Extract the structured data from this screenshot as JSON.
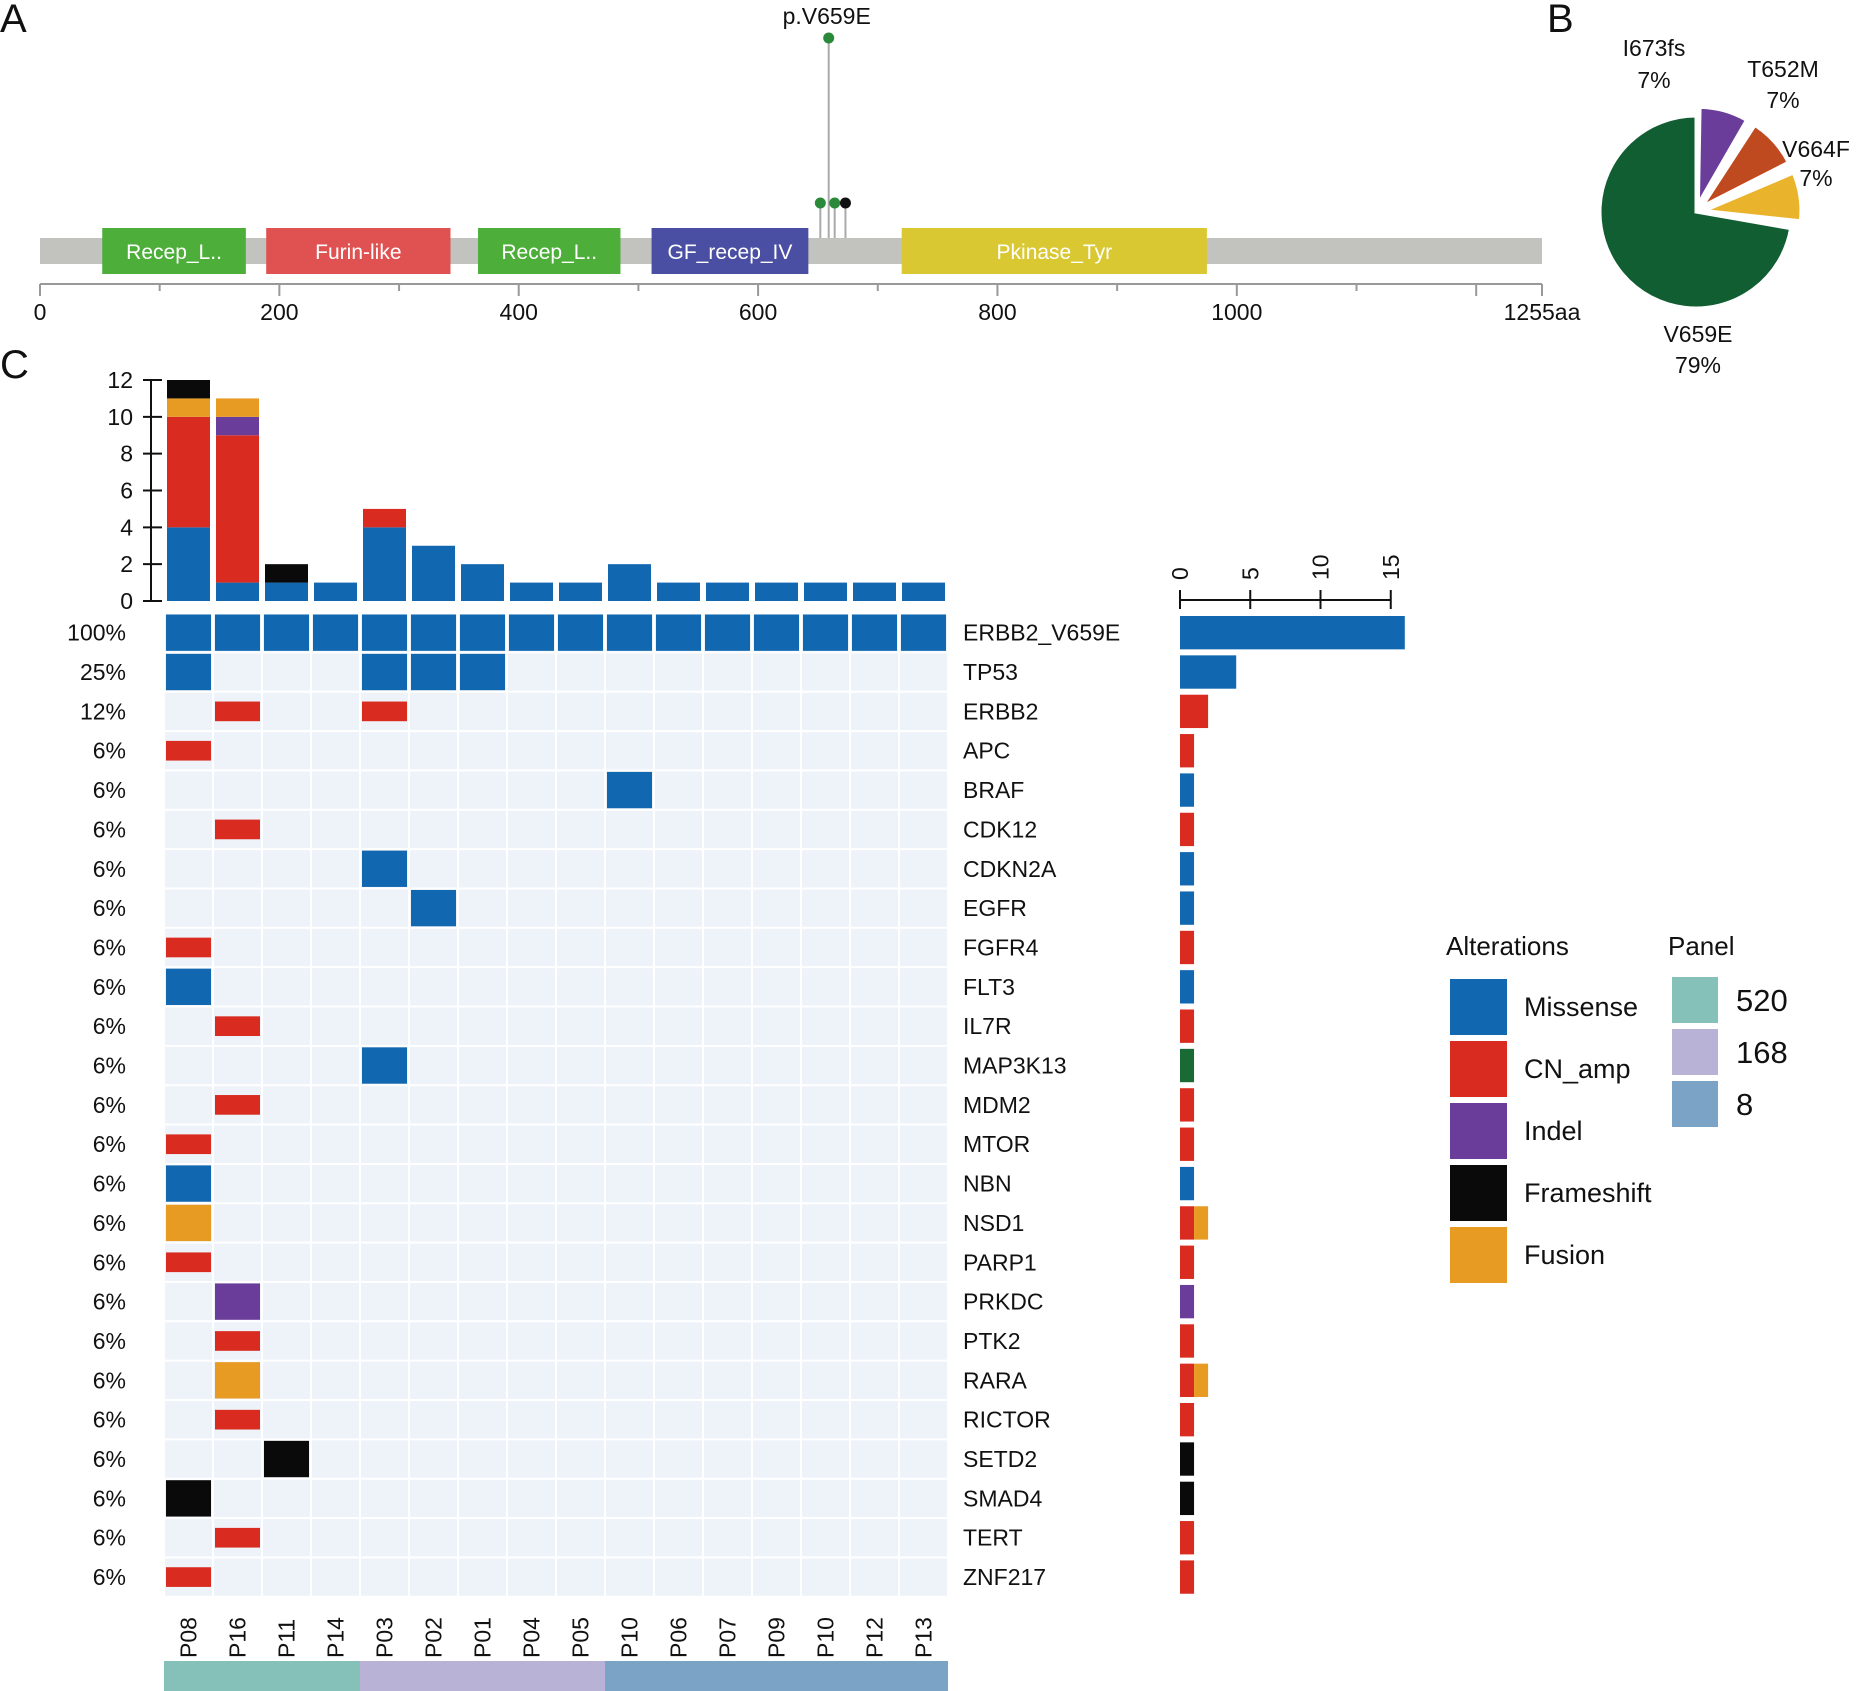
{
  "chart_data": [
    {
      "type": "lollipop",
      "panel_label": "A",
      "protein_length": 1255,
      "axis_ticks": [
        0,
        200,
        400,
        600,
        800,
        1000
      ],
      "axis_end_label": "1255aa",
      "domains": [
        {
          "name": "Recep_L..",
          "start": 52,
          "end": 172,
          "color": "#4daf3a"
        },
        {
          "name": "Furin-like",
          "start": 189,
          "end": 343,
          "color": "#e05252"
        },
        {
          "name": "Recep_L..",
          "start": 366,
          "end": 485,
          "color": "#4daf3a"
        },
        {
          "name": "GF_recep_IV",
          "start": 511,
          "end": 642,
          "color": "#4a4fa3"
        },
        {
          "name": "Pkinase_Tyr",
          "start": 720,
          "end": 975,
          "color": "#d9c832"
        }
      ],
      "mutations": [
        {
          "pos": 659,
          "count": 11,
          "color": "#2a8a3a",
          "label": "p.V659E"
        },
        {
          "pos": 652,
          "count": 1,
          "color": "#2a8a3a",
          "label": ""
        },
        {
          "pos": 664,
          "count": 1,
          "color": "#2a8a3a",
          "label": ""
        },
        {
          "pos": 673,
          "count": 1,
          "color": "#111111",
          "label": ""
        }
      ]
    },
    {
      "type": "pie",
      "panel_label": "B",
      "slices": [
        {
          "name": "V659E",
          "pct": 79,
          "label": "79%",
          "color": "#115e32"
        },
        {
          "name": "I673fs",
          "pct": 7,
          "label": "7%",
          "color": "#6a3d9a"
        },
        {
          "name": "T652M",
          "pct": 7,
          "label": "7%",
          "color": "#c04a20"
        },
        {
          "name": "V664F",
          "pct": 7,
          "label": "7%",
          "color": "#eab32c"
        }
      ]
    },
    {
      "type": "oncoprint",
      "panel_label": "C",
      "samples": [
        "P08",
        "P16",
        "P11",
        "P14",
        "P03",
        "P02",
        "P01",
        "P04",
        "P05",
        "P10",
        "P06",
        "P07",
        "P09",
        "P10",
        "P12",
        "P13"
      ],
      "top_axis_ticks": [
        0,
        2,
        4,
        6,
        8,
        10,
        12
      ],
      "right_axis_ticks": [
        0,
        5,
        10,
        15
      ],
      "sample_bars": [
        {
          "missense": 4,
          "cn_amp": 6,
          "indel": 0,
          "fusion": 1,
          "frameshift": 1
        },
        {
          "missense": 1,
          "cn_amp": 8,
          "indel": 1,
          "fusion": 1,
          "frameshift": 0
        },
        {
          "missense": 1,
          "cn_amp": 0,
          "indel": 0,
          "fusion": 0,
          "frameshift": 1
        },
        {
          "missense": 1,
          "cn_amp": 0,
          "indel": 0,
          "fusion": 0,
          "frameshift": 0
        },
        {
          "missense": 4,
          "cn_amp": 1,
          "indel": 0,
          "fusion": 0,
          "frameshift": 0
        },
        {
          "missense": 3,
          "cn_amp": 0,
          "indel": 0,
          "fusion": 0,
          "frameshift": 0
        },
        {
          "missense": 2,
          "cn_amp": 0,
          "indel": 0,
          "fusion": 0,
          "frameshift": 0
        },
        {
          "missense": 1,
          "cn_amp": 0,
          "indel": 0,
          "fusion": 0,
          "frameshift": 0
        },
        {
          "missense": 1,
          "cn_amp": 0,
          "indel": 0,
          "fusion": 0,
          "frameshift": 0
        },
        {
          "missense": 2,
          "cn_amp": 0,
          "indel": 0,
          "fusion": 0,
          "frameshift": 0
        },
        {
          "missense": 1,
          "cn_amp": 0,
          "indel": 0,
          "fusion": 0,
          "frameshift": 0
        },
        {
          "missense": 1,
          "cn_amp": 0,
          "indel": 0,
          "fusion": 0,
          "frameshift": 0
        },
        {
          "missense": 1,
          "cn_amp": 0,
          "indel": 0,
          "fusion": 0,
          "frameshift": 0
        },
        {
          "missense": 1,
          "cn_amp": 0,
          "indel": 0,
          "fusion": 0,
          "frameshift": 0
        },
        {
          "missense": 1,
          "cn_amp": 0,
          "indel": 0,
          "fusion": 0,
          "frameshift": 0
        },
        {
          "missense": 1,
          "cn_amp": 0,
          "indel": 0,
          "fusion": 0,
          "frameshift": 0
        }
      ],
      "genes": [
        {
          "name": "ERBB2_V659E",
          "pct": "100%",
          "cells": [
            [
              "M",
              0
            ],
            [
              "M",
              1
            ],
            [
              "M",
              2
            ],
            [
              "M",
              3
            ],
            [
              "M",
              4
            ],
            [
              "M",
              5
            ],
            [
              "M",
              6
            ],
            [
              "M",
              7
            ],
            [
              "M",
              8
            ],
            [
              "M",
              9
            ],
            [
              "M",
              10
            ],
            [
              "M",
              11
            ],
            [
              "M",
              12
            ],
            [
              "M",
              13
            ],
            [
              "M",
              14
            ],
            [
              "M",
              15
            ]
          ],
          "bar": [
            {
              "type": "M",
              "n": 16
            }
          ]
        },
        {
          "name": "TP53",
          "pct": "25%",
          "cells": [
            [
              "M",
              0
            ],
            [
              "M",
              4
            ],
            [
              "M",
              5
            ],
            [
              "M",
              6
            ]
          ],
          "bar": [
            {
              "type": "M",
              "n": 4
            }
          ]
        },
        {
          "name": "ERBB2",
          "pct": "12%",
          "cells": [
            [
              "A",
              1
            ],
            [
              "A",
              4
            ]
          ],
          "bar": [
            {
              "type": "A",
              "n": 2
            }
          ]
        },
        {
          "name": "APC",
          "pct": "6%",
          "cells": [
            [
              "A",
              0
            ]
          ],
          "bar": [
            {
              "type": "A",
              "n": 1
            }
          ]
        },
        {
          "name": "BRAF",
          "pct": "6%",
          "cells": [
            [
              "M",
              9
            ]
          ],
          "bar": [
            {
              "type": "M",
              "n": 1
            }
          ]
        },
        {
          "name": "CDK12",
          "pct": "6%",
          "cells": [
            [
              "A",
              1
            ]
          ],
          "bar": [
            {
              "type": "A",
              "n": 1
            }
          ]
        },
        {
          "name": "CDKN2A",
          "pct": "6%",
          "cells": [
            [
              "M",
              4
            ]
          ],
          "bar": [
            {
              "type": "M",
              "n": 1
            }
          ]
        },
        {
          "name": "EGFR",
          "pct": "6%",
          "cells": [
            [
              "M",
              5
            ]
          ],
          "bar": [
            {
              "type": "M",
              "n": 1
            }
          ]
        },
        {
          "name": "FGFR4",
          "pct": "6%",
          "cells": [
            [
              "A",
              0
            ]
          ],
          "bar": [
            {
              "type": "A",
              "n": 1
            }
          ]
        },
        {
          "name": "FLT3",
          "pct": "6%",
          "cells": [
            [
              "M",
              0
            ]
          ],
          "bar": [
            {
              "type": "M",
              "n": 1
            }
          ]
        },
        {
          "name": "IL7R",
          "pct": "6%",
          "cells": [
            [
              "A",
              1
            ]
          ],
          "bar": [
            {
              "type": "A",
              "n": 1
            }
          ]
        },
        {
          "name": "MAP3K13",
          "pct": "6%",
          "cells": [
            [
              "M",
              4
            ]
          ],
          "bar": [
            {
              "type": "G",
              "n": 1
            }
          ]
        },
        {
          "name": "MDM2",
          "pct": "6%",
          "cells": [
            [
              "A",
              1
            ]
          ],
          "bar": [
            {
              "type": "A",
              "n": 1
            }
          ]
        },
        {
          "name": "MTOR",
          "pct": "6%",
          "cells": [
            [
              "A",
              0
            ]
          ],
          "bar": [
            {
              "type": "A",
              "n": 1
            }
          ]
        },
        {
          "name": "NBN",
          "pct": "6%",
          "cells": [
            [
              "M",
              0
            ]
          ],
          "bar": [
            {
              "type": "M",
              "n": 1
            }
          ]
        },
        {
          "name": "NSD1",
          "pct": "6%",
          "cells": [
            [
              "U",
              0
            ]
          ],
          "bar": [
            {
              "type": "A",
              "n": 1
            },
            {
              "type": "U",
              "n": 1
            }
          ]
        },
        {
          "name": "PARP1",
          "pct": "6%",
          "cells": [
            [
              "A",
              0
            ]
          ],
          "bar": [
            {
              "type": "A",
              "n": 1
            }
          ]
        },
        {
          "name": "PRKDC",
          "pct": "6%",
          "cells": [
            [
              "I",
              1
            ]
          ],
          "bar": [
            {
              "type": "I",
              "n": 1
            }
          ]
        },
        {
          "name": "PTK2",
          "pct": "6%",
          "cells": [
            [
              "A",
              1
            ]
          ],
          "bar": [
            {
              "type": "A",
              "n": 1
            }
          ]
        },
        {
          "name": "RARA",
          "pct": "6%",
          "cells": [
            [
              "U",
              1
            ]
          ],
          "bar": [
            {
              "type": "A",
              "n": 1
            },
            {
              "type": "U",
              "n": 1
            }
          ]
        },
        {
          "name": "RICTOR",
          "pct": "6%",
          "cells": [
            [
              "A",
              1
            ]
          ],
          "bar": [
            {
              "type": "A",
              "n": 1
            }
          ]
        },
        {
          "name": "SETD2",
          "pct": "6%",
          "cells": [
            [
              "F",
              2
            ]
          ],
          "bar": [
            {
              "type": "F",
              "n": 1
            }
          ]
        },
        {
          "name": "SMAD4",
          "pct": "6%",
          "cells": [
            [
              "F",
              0
            ]
          ],
          "bar": [
            {
              "type": "F",
              "n": 1
            }
          ]
        },
        {
          "name": "TERT",
          "pct": "6%",
          "cells": [
            [
              "A",
              1
            ]
          ],
          "bar": [
            {
              "type": "A",
              "n": 1
            }
          ]
        },
        {
          "name": "ZNF217",
          "pct": "6%",
          "cells": [
            [
              "A",
              0
            ]
          ],
          "bar": [
            {
              "type": "A",
              "n": 1
            }
          ]
        }
      ],
      "panel_groups": [
        {
          "value": "520",
          "start": 0,
          "end": 4,
          "color": "#85c1b8"
        },
        {
          "value": "168",
          "start": 4,
          "end": 9,
          "color": "#b8b3d6"
        },
        {
          "value": "8",
          "start": 9,
          "end": 16,
          "color": "#7ba3c6"
        }
      ],
      "legend": {
        "alterations_title": "Alterations",
        "alterations": [
          {
            "code": "M",
            "label": "Missense",
            "color": "#1268b0"
          },
          {
            "code": "A",
            "label": "CN_amp",
            "color": "#d92b20"
          },
          {
            "code": "I",
            "label": "Indel",
            "color": "#6a3d9a"
          },
          {
            "code": "F",
            "label": "Frameshift",
            "color": "#0a0a0a"
          },
          {
            "code": "U",
            "label": "Fusion",
            "color": "#e89b22"
          }
        ],
        "panel_title": "Panel",
        "panels": [
          {
            "label": "520",
            "color": "#85c1b8"
          },
          {
            "label": "168",
            "color": "#b8b3d6"
          },
          {
            "label": "8",
            "color": "#7ba3c6"
          }
        ]
      },
      "extra_colors": {
        "G": "#1a6a35"
      },
      "cell_background": "#eef3fa"
    }
  ]
}
